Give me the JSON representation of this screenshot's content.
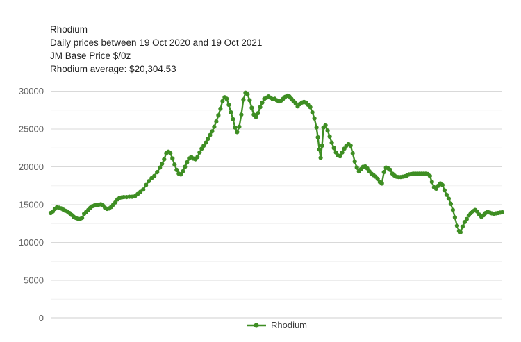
{
  "header": {
    "title": "Rhodium",
    "subtitle": "Daily prices between 19 Oct 2020 and 19 Oct 2021",
    "unit_line": "JM Base Price $/0z",
    "average_line": "Rhodium average: $20,304.53"
  },
  "legend": {
    "label": "Rhodium"
  },
  "colors": {
    "series": "#3e8e23",
    "title_text": "#212121",
    "axis_label": "#616161",
    "gridline_major": "#d9d9d9",
    "gridline_minor": "#f0f0f0",
    "axis_baseline": "#424242",
    "background": "#ffffff"
  },
  "chart_data": {
    "type": "line",
    "title": "Rhodium",
    "subtitle": "Daily prices between 19 Oct 2020 and 19 Oct 2021",
    "ylabel": "JM Base Price $/0z",
    "average": 20304.53,
    "x_range_dates": [
      "19 Oct 2020",
      "19 Oct 2021"
    ],
    "ylim": [
      0,
      30000
    ],
    "y_ticks": [
      0,
      5000,
      10000,
      15000,
      20000,
      25000,
      30000
    ],
    "y_minor_step": 2500,
    "grid": true,
    "legend_position": "bottom",
    "marker": "circle",
    "series": [
      {
        "name": "Rhodium",
        "color": "#3e8e23",
        "points": [
          [
            72,
            13900
          ],
          [
            75,
            14100
          ],
          [
            78,
            14450
          ],
          [
            81,
            14650
          ],
          [
            84,
            14600
          ],
          [
            87,
            14500
          ],
          [
            90,
            14350
          ],
          [
            93,
            14200
          ],
          [
            96,
            14100
          ],
          [
            99,
            13900
          ],
          [
            102,
            13650
          ],
          [
            105,
            13400
          ],
          [
            108,
            13250
          ],
          [
            111,
            13150
          ],
          [
            114,
            13100
          ],
          [
            117,
            13250
          ],
          [
            120,
            13800
          ],
          [
            123,
            14050
          ],
          [
            126,
            14300
          ],
          [
            129,
            14600
          ],
          [
            132,
            14800
          ],
          [
            135,
            14900
          ],
          [
            138,
            14950
          ],
          [
            141,
            15000
          ],
          [
            144,
            15050
          ],
          [
            147,
            14900
          ],
          [
            150,
            14600
          ],
          [
            153,
            14450
          ],
          [
            156,
            14500
          ],
          [
            159,
            14700
          ],
          [
            162,
            15000
          ],
          [
            165,
            15300
          ],
          [
            168,
            15700
          ],
          [
            171,
            15900
          ],
          [
            174,
            15950
          ],
          [
            177,
            16000
          ],
          [
            181,
            16000
          ],
          [
            185,
            16050
          ],
          [
            189,
            16050
          ],
          [
            193,
            16100
          ],
          [
            197,
            16400
          ],
          [
            201,
            16700
          ],
          [
            205,
            17000
          ],
          [
            209,
            17600
          ],
          [
            213,
            18100
          ],
          [
            217,
            18500
          ],
          [
            221,
            18800
          ],
          [
            225,
            19300
          ],
          [
            229,
            19900
          ],
          [
            232,
            20400
          ],
          [
            235,
            21000
          ],
          [
            238,
            21800
          ],
          [
            241,
            22000
          ],
          [
            244,
            21800
          ],
          [
            247,
            21100
          ],
          [
            250,
            20300
          ],
          [
            253,
            19600
          ],
          [
            256,
            19100
          ],
          [
            259,
            19000
          ],
          [
            262,
            19400
          ],
          [
            265,
            20000
          ],
          [
            268,
            20600
          ],
          [
            271,
            21100
          ],
          [
            274,
            21300
          ],
          [
            277,
            21100
          ],
          [
            280,
            21000
          ],
          [
            283,
            21300
          ],
          [
            286,
            21900
          ],
          [
            289,
            22400
          ],
          [
            292,
            22800
          ],
          [
            295,
            23200
          ],
          [
            298,
            23700
          ],
          [
            301,
            24200
          ],
          [
            304,
            24700
          ],
          [
            307,
            25300
          ],
          [
            310,
            26000
          ],
          [
            313,
            26800
          ],
          [
            316,
            27700
          ],
          [
            319,
            28700
          ],
          [
            322,
            29200
          ],
          [
            325,
            29000
          ],
          [
            328,
            28200
          ],
          [
            331,
            27200
          ],
          [
            334,
            26300
          ],
          [
            337,
            25200
          ],
          [
            340,
            24600
          ],
          [
            343,
            25300
          ],
          [
            346,
            26900
          ],
          [
            349,
            28900
          ],
          [
            352,
            29800
          ],
          [
            355,
            29600
          ],
          [
            358,
            28800
          ],
          [
            361,
            27800
          ],
          [
            364,
            26900
          ],
          [
            367,
            26600
          ],
          [
            370,
            27100
          ],
          [
            373,
            27900
          ],
          [
            376,
            28500
          ],
          [
            379,
            29000
          ],
          [
            382,
            29150
          ],
          [
            385,
            29300
          ],
          [
            388,
            29150
          ],
          [
            391,
            28950
          ],
          [
            394,
            29000
          ],
          [
            397,
            28800
          ],
          [
            400,
            28650
          ],
          [
            403,
            28750
          ],
          [
            406,
            29000
          ],
          [
            409,
            29250
          ],
          [
            412,
            29400
          ],
          [
            415,
            29300
          ],
          [
            418,
            29000
          ],
          [
            421,
            28700
          ],
          [
            424,
            28400
          ],
          [
            427,
            28000
          ],
          [
            430,
            28300
          ],
          [
            433,
            28500
          ],
          [
            436,
            28600
          ],
          [
            439,
            28500
          ],
          [
            442,
            28200
          ],
          [
            445,
            27900
          ],
          [
            448,
            27200
          ],
          [
            451,
            26400
          ],
          [
            454,
            25200
          ],
          [
            456,
            23900
          ],
          [
            458,
            22300
          ],
          [
            460,
            21200
          ],
          [
            462,
            22800
          ],
          [
            464,
            25200
          ],
          [
            467,
            25500
          ],
          [
            470,
            24800
          ],
          [
            473,
            24000
          ],
          [
            476,
            23200
          ],
          [
            479,
            22500
          ],
          [
            482,
            21900
          ],
          [
            485,
            21500
          ],
          [
            488,
            21400
          ],
          [
            491,
            21900
          ],
          [
            494,
            22400
          ],
          [
            497,
            22800
          ],
          [
            500,
            23000
          ],
          [
            503,
            22800
          ],
          [
            506,
            21800
          ],
          [
            509,
            20700
          ],
          [
            512,
            19900
          ],
          [
            515,
            19400
          ],
          [
            518,
            19700
          ],
          [
            521,
            20000
          ],
          [
            524,
            20050
          ],
          [
            527,
            19800
          ],
          [
            530,
            19400
          ],
          [
            533,
            19100
          ],
          [
            536,
            18900
          ],
          [
            539,
            18700
          ],
          [
            542,
            18400
          ],
          [
            545,
            18000
          ],
          [
            548,
            17800
          ],
          [
            551,
            19300
          ],
          [
            554,
            19900
          ],
          [
            557,
            19800
          ],
          [
            560,
            19600
          ],
          [
            563,
            19100
          ],
          [
            566,
            18850
          ],
          [
            569,
            18700
          ],
          [
            572,
            18650
          ],
          [
            575,
            18650
          ],
          [
            578,
            18700
          ],
          [
            581,
            18750
          ],
          [
            584,
            18850
          ],
          [
            587,
            19000
          ],
          [
            590,
            19050
          ],
          [
            593,
            19100
          ],
          [
            596,
            19100
          ],
          [
            599,
            19100
          ],
          [
            602,
            19100
          ],
          [
            605,
            19100
          ],
          [
            608,
            19100
          ],
          [
            611,
            19100
          ],
          [
            614,
            19050
          ],
          [
            617,
            18800
          ],
          [
            620,
            18000
          ],
          [
            623,
            17300
          ],
          [
            626,
            17100
          ],
          [
            629,
            17500
          ],
          [
            632,
            17800
          ],
          [
            635,
            17600
          ],
          [
            638,
            16900
          ],
          [
            641,
            16300
          ],
          [
            644,
            15800
          ],
          [
            647,
            15100
          ],
          [
            650,
            14300
          ],
          [
            653,
            13300
          ],
          [
            656,
            12200
          ],
          [
            659,
            11500
          ],
          [
            661,
            11350
          ],
          [
            664,
            12100
          ],
          [
            667,
            12700
          ],
          [
            670,
            13100
          ],
          [
            673,
            13600
          ],
          [
            676,
            13900
          ],
          [
            679,
            14150
          ],
          [
            682,
            14300
          ],
          [
            685,
            14100
          ],
          [
            688,
            13700
          ],
          [
            691,
            13400
          ],
          [
            694,
            13600
          ],
          [
            697,
            13900
          ],
          [
            700,
            14050
          ],
          [
            703,
            13950
          ],
          [
            706,
            13850
          ],
          [
            709,
            13800
          ],
          [
            712,
            13850
          ],
          [
            715,
            13900
          ],
          [
            718,
            13950
          ],
          [
            721,
            14000
          ]
        ]
      }
    ]
  }
}
